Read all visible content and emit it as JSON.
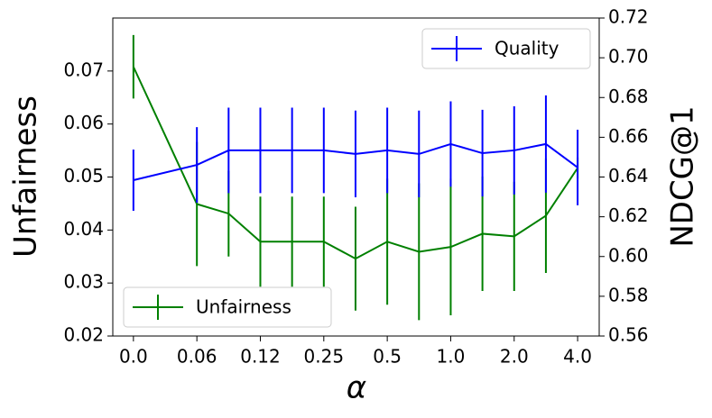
{
  "chart_data": {
    "type": "line",
    "xlabel": "α",
    "ylabel": "Unfairness",
    "y2label": "NDCG@1",
    "x": [
      0,
      2,
      3,
      4,
      5,
      6,
      7,
      8,
      9,
      10,
      11,
      12,
      13,
      14
    ],
    "xlim": [
      -0.65,
      14.68
    ],
    "xticks": [
      {
        "value": 0,
        "label": "0.0"
      },
      {
        "value": 2,
        "label": "0.06"
      },
      {
        "value": 4,
        "label": "0.12"
      },
      {
        "value": 6,
        "label": "0.25"
      },
      {
        "value": 8,
        "label": "0.5"
      },
      {
        "value": 10,
        "label": "1.0"
      },
      {
        "value": 12,
        "label": "2.0"
      },
      {
        "value": 14,
        "label": "4.0"
      }
    ],
    "ylim": [
      0.02,
      0.08
    ],
    "yticks": [
      0.02,
      0.03,
      0.04,
      0.05,
      0.06,
      0.07
    ],
    "y2lim": [
      0.56,
      0.72
    ],
    "y2ticks": [
      0.56,
      0.58,
      {
        "value": 0.6,
        "label": "0.60"
      },
      0.62,
      0.64,
      0.66,
      0.68,
      {
        "value": 0.7,
        "label": "0.70"
      },
      0.72
    ],
    "series": [
      {
        "name": "Unfairness",
        "color": "#008000",
        "axis": "y",
        "legend": "lower left",
        "values": [
          0.0708,
          0.0449,
          0.0431,
          0.0378,
          0.0378,
          0.0378,
          0.0346,
          0.0378,
          0.0359,
          0.0368,
          0.0393,
          0.0388,
          0.0427,
          0.0517
        ],
        "errors": [
          0.006,
          0.0117,
          0.0081,
          0.0085,
          0.0085,
          0.0085,
          0.0098,
          0.0119,
          0.0129,
          0.0129,
          0.0108,
          0.0103,
          0.0108,
          0.002
        ]
      },
      {
        "name": "Quality",
        "color": "#0000ff",
        "axis": "y2",
        "legend": "upper right",
        "values": [
          0.6384,
          0.6461,
          0.6534,
          0.6534,
          0.6534,
          0.6534,
          0.6516,
          0.6534,
          0.6516,
          0.6566,
          0.652,
          0.6534,
          0.6566,
          0.6448
        ],
        "errors": [
          0.0154,
          0.019,
          0.0215,
          0.0215,
          0.0215,
          0.0215,
          0.0218,
          0.0215,
          0.0218,
          0.0215,
          0.0218,
          0.0222,
          0.0245,
          0.019
        ]
      }
    ]
  }
}
